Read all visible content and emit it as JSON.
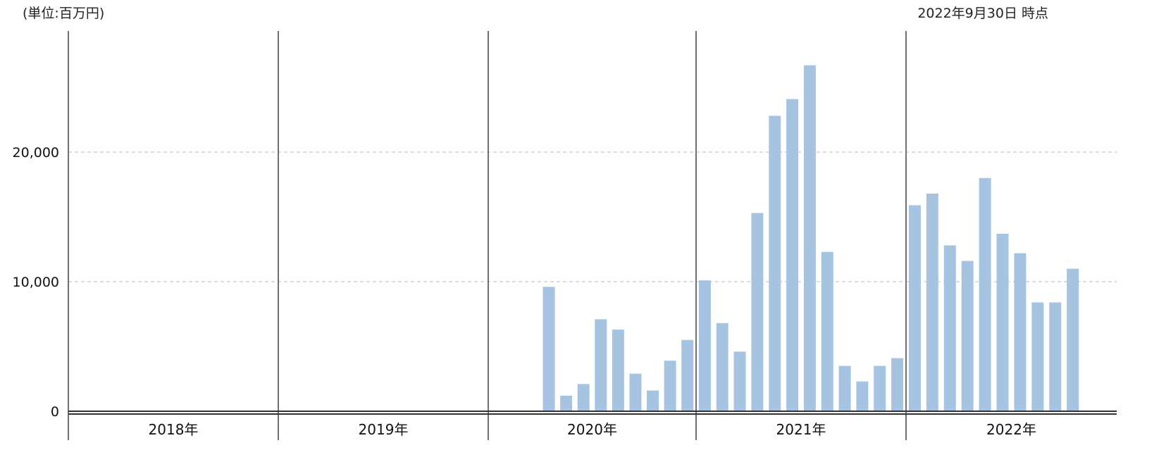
{
  "header": {
    "unit": "(単位:百万円)",
    "as_of": "2022年9月30日 時点"
  },
  "chart_data": {
    "type": "bar",
    "title": "",
    "xlabel": "",
    "ylabel": "",
    "unit": "百万円",
    "years": [
      "2018年",
      "2019年",
      "2020年",
      "2021年",
      "2022年"
    ],
    "months_per_year": 12,
    "series": [
      {
        "color": "#a6c4e1",
        "values": [
          null,
          null,
          null,
          null,
          null,
          null,
          null,
          null,
          null,
          null,
          null,
          null,
          null,
          null,
          null,
          null,
          null,
          null,
          null,
          null,
          null,
          null,
          null,
          null,
          null,
          null,
          null,
          9600,
          1200,
          2100,
          7100,
          6300,
          2900,
          1600,
          3900,
          5500,
          10100,
          6800,
          4600,
          15300,
          22800,
          24100,
          26700,
          12300,
          3500,
          2300,
          3500,
          4100,
          15900,
          16800,
          12800,
          11600,
          18000,
          13700,
          12200,
          8400,
          8400,
          11000,
          null,
          null,
          null
        ]
      }
    ],
    "y_ticks": [
      0,
      10000,
      20000
    ],
    "y_tick_labels": [
      "0",
      "10,000",
      "20,000"
    ],
    "ylim": [
      0,
      28000
    ],
    "grid": "horizontal-dashed",
    "legend": "none"
  }
}
